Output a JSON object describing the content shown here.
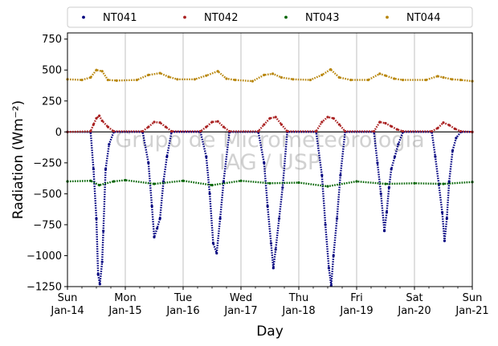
{
  "chart_data": {
    "type": "scatter",
    "xlabel": "Day",
    "ylabel": "Radiation (Wm⁻²)",
    "ylim": [
      -1250,
      800
    ],
    "xlim": [
      0,
      7
    ],
    "yticks": [
      -1250,
      -1000,
      -750,
      -500,
      -250,
      0,
      250,
      500,
      750
    ],
    "xticks": [
      {
        "x": 0,
        "line1": "Sun",
        "line2": "Jan-14"
      },
      {
        "x": 1,
        "line1": "Mon",
        "line2": "Jan-15"
      },
      {
        "x": 2,
        "line1": "Tue",
        "line2": "Jan-16"
      },
      {
        "x": 3,
        "line1": "Wed",
        "line2": "Jan-17"
      },
      {
        "x": 4,
        "line1": "Thu",
        "line2": "Jan-18"
      },
      {
        "x": 5,
        "line1": "Fri",
        "line2": "Jan-19"
      },
      {
        "x": 6,
        "line1": "Sat",
        "line2": "Jan-20"
      },
      {
        "x": 7,
        "line1": "Sun",
        "line2": "Jan-21"
      }
    ],
    "grid": "vertical",
    "legend_placement": "top",
    "zero_line": true,
    "watermark": [
      "Grupo de Micrometeorologia",
      "IAG / USP"
    ],
    "series": [
      {
        "name": "NT041",
        "color": "#00007f",
        "x": [
          0,
          0.4,
          0.45,
          0.5,
          0.53,
          0.56,
          0.6,
          0.62,
          0.66,
          0.72,
          0.8,
          1.3,
          1.4,
          1.46,
          1.5,
          1.55,
          1.6,
          1.66,
          1.72,
          1.8,
          2.3,
          2.4,
          2.46,
          2.52,
          2.58,
          2.64,
          2.7,
          2.8,
          3.3,
          3.4,
          3.46,
          3.52,
          3.56,
          3.6,
          3.66,
          3.72,
          3.8,
          4.3,
          4.4,
          4.46,
          4.52,
          4.56,
          4.6,
          4.66,
          4.72,
          4.8,
          5.3,
          5.36,
          5.42,
          5.48,
          5.52,
          5.56,
          5.6,
          5.66,
          5.72,
          5.8,
          6.3,
          6.36,
          6.42,
          6.48,
          6.52,
          6.56,
          6.6,
          6.66,
          6.72,
          6.8,
          7
        ],
        "y": [
          0,
          0,
          -300,
          -700,
          -1150,
          -1230,
          -1050,
          -800,
          -300,
          -100,
          0,
          0,
          -250,
          -600,
          -850,
          -780,
          -700,
          -400,
          -200,
          0,
          0,
          -200,
          -500,
          -900,
          -980,
          -700,
          -400,
          0,
          0,
          -250,
          -600,
          -900,
          -1100,
          -950,
          -700,
          -450,
          0,
          0,
          -350,
          -750,
          -1100,
          -1240,
          -1000,
          -700,
          -350,
          0,
          0,
          -250,
          -500,
          -800,
          -650,
          -450,
          -300,
          -200,
          -100,
          0,
          0,
          -200,
          -420,
          -650,
          -880,
          -700,
          -400,
          -150,
          -50,
          0,
          0
        ]
      },
      {
        "name": "NT042",
        "color": "#aa2222",
        "x": [
          0,
          0.4,
          0.45,
          0.5,
          0.55,
          0.6,
          0.7,
          0.8,
          1.3,
          1.4,
          1.5,
          1.6,
          1.7,
          1.8,
          2.3,
          2.4,
          2.5,
          2.6,
          2.7,
          2.8,
          3.3,
          3.4,
          3.5,
          3.6,
          3.7,
          3.8,
          4.3,
          4.4,
          4.5,
          4.6,
          4.7,
          4.8,
          5.3,
          5.4,
          5.5,
          5.6,
          5.7,
          5.8,
          6.3,
          6.4,
          6.5,
          6.6,
          6.7,
          6.8,
          7
        ],
        "y": [
          0,
          5,
          60,
          110,
          130,
          90,
          40,
          5,
          5,
          40,
          80,
          75,
          40,
          5,
          5,
          40,
          80,
          85,
          40,
          5,
          5,
          60,
          110,
          120,
          60,
          5,
          5,
          80,
          120,
          110,
          60,
          5,
          5,
          80,
          70,
          45,
          20,
          5,
          5,
          30,
          75,
          55,
          25,
          5,
          0
        ]
      },
      {
        "name": "NT043",
        "color": "#006400",
        "x": [
          0,
          0.4,
          0.55,
          0.8,
          1.0,
          1.5,
          2.0,
          2.5,
          3.0,
          3.5,
          4.0,
          4.5,
          5.0,
          5.5,
          6.0,
          6.5,
          7.0
        ],
        "y": [
          -400,
          -395,
          -430,
          -400,
          -390,
          -420,
          -395,
          -430,
          -395,
          -415,
          -410,
          -440,
          -400,
          -420,
          -415,
          -420,
          -405
        ]
      },
      {
        "name": "NT044",
        "color": "#b8860b",
        "x": [
          0,
          0.25,
          0.4,
          0.5,
          0.6,
          0.7,
          0.85,
          1.2,
          1.4,
          1.6,
          1.75,
          1.9,
          2.2,
          2.4,
          2.6,
          2.75,
          2.9,
          3.2,
          3.4,
          3.55,
          3.7,
          3.9,
          4.2,
          4.4,
          4.55,
          4.7,
          4.9,
          5.2,
          5.4,
          5.5,
          5.65,
          5.8,
          6.2,
          6.4,
          6.5,
          6.65,
          6.8,
          7
        ],
        "y": [
          425,
          420,
          440,
          500,
          490,
          420,
          415,
          420,
          460,
          475,
          445,
          425,
          425,
          455,
          490,
          430,
          420,
          410,
          460,
          470,
          440,
          425,
          420,
          460,
          505,
          440,
          420,
          420,
          470,
          455,
          430,
          420,
          420,
          450,
          440,
          425,
          420,
          410
        ]
      }
    ]
  }
}
